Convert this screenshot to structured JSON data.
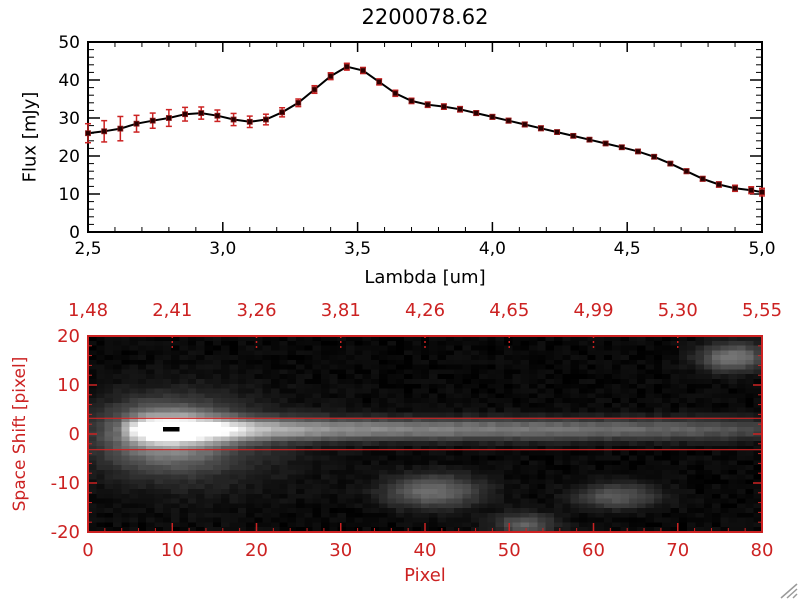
{
  "window": {
    "background": "#ffffff"
  },
  "colors": {
    "axis_black": "#000000",
    "accent_red": "#cc2222",
    "error_bar_red": "#cc2222",
    "marker_fill": "#2b0000",
    "marker_stroke": "#8b1a1a",
    "line_black": "#000000",
    "grip_gray": "#9a9a9a"
  },
  "icons": {
    "resize_grip": "diagonal-hatch-grip"
  },
  "chart_data": [
    {
      "type": "line",
      "title": "2200078.62",
      "xlabel": "Lambda [um]",
      "ylabel": "Flux [mJy]",
      "xlim": [
        2.5,
        5.0
      ],
      "ylim": [
        0,
        50
      ],
      "grid": false,
      "x_ticks": [
        {
          "value": 2.5,
          "label": "2,5"
        },
        {
          "value": 3.0,
          "label": "3,0"
        },
        {
          "value": 3.5,
          "label": "3,5"
        },
        {
          "value": 4.0,
          "label": "4,0"
        },
        {
          "value": 4.5,
          "label": "4,5"
        },
        {
          "value": 5.0,
          "label": "5,0"
        }
      ],
      "y_ticks": [
        {
          "value": 0,
          "label": "0"
        },
        {
          "value": 10,
          "label": "10"
        },
        {
          "value": 20,
          "label": "20"
        },
        {
          "value": 30,
          "label": "30"
        },
        {
          "value": 40,
          "label": "40"
        },
        {
          "value": 50,
          "label": "50"
        }
      ],
      "x_minor_step": 0.1,
      "y_minor_step": 2,
      "series": [
        {
          "name": "spectrum",
          "marker": "square",
          "x": [
            2.5,
            2.56,
            2.62,
            2.68,
            2.74,
            2.8,
            2.86,
            2.92,
            2.98,
            3.04,
            3.1,
            3.16,
            3.22,
            3.28,
            3.34,
            3.4,
            3.46,
            3.52,
            3.58,
            3.64,
            3.7,
            3.76,
            3.82,
            3.88,
            3.94,
            4.0,
            4.06,
            4.12,
            4.18,
            4.24,
            4.3,
            4.36,
            4.42,
            4.48,
            4.54,
            4.6,
            4.66,
            4.72,
            4.78,
            4.84,
            4.9,
            4.96,
            5.0
          ],
          "y": [
            26.0,
            26.5,
            27.2,
            28.5,
            29.3,
            30.0,
            31.0,
            31.3,
            30.6,
            29.6,
            29.0,
            29.6,
            31.5,
            34.0,
            37.5,
            41.0,
            43.5,
            42.5,
            39.5,
            36.5,
            34.5,
            33.5,
            33.0,
            32.3,
            31.3,
            30.3,
            29.3,
            28.3,
            27.3,
            26.3,
            25.3,
            24.3,
            23.3,
            22.3,
            21.2,
            19.8,
            18.0,
            16.0,
            14.0,
            12.5,
            11.5,
            11.0,
            10.5
          ],
          "yerr": [
            2.5,
            2.8,
            3.2,
            2.2,
            2.0,
            2.2,
            1.8,
            1.6,
            1.5,
            1.6,
            1.5,
            1.4,
            1.2,
            1.0,
            1.0,
            0.9,
            0.9,
            0.8,
            0.8,
            0.8,
            0.7,
            0.7,
            0.7,
            0.7,
            0.6,
            0.6,
            0.6,
            0.6,
            0.6,
            0.5,
            0.5,
            0.5,
            0.5,
            0.5,
            0.5,
            0.5,
            0.5,
            0.6,
            0.6,
            0.7,
            0.8,
            0.9,
            1.0
          ]
        }
      ]
    },
    {
      "type": "heatmap",
      "title": "",
      "xlabel": "Pixel",
      "ylabel": "Space Shift [pixel]",
      "xlim": [
        0,
        80
      ],
      "ylim": [
        -20,
        20
      ],
      "x_ticks": [
        {
          "value": 0,
          "label": "0"
        },
        {
          "value": 10,
          "label": "10"
        },
        {
          "value": 20,
          "label": "20"
        },
        {
          "value": 30,
          "label": "30"
        },
        {
          "value": 40,
          "label": "40"
        },
        {
          "value": 50,
          "label": "50"
        },
        {
          "value": 60,
          "label": "60"
        },
        {
          "value": 70,
          "label": "70"
        },
        {
          "value": 80,
          "label": "80"
        }
      ],
      "y_ticks": [
        {
          "value": 20,
          "label": "20"
        },
        {
          "value": 10,
          "label": "10"
        },
        {
          "value": 0,
          "label": "0"
        },
        {
          "value": -10,
          "label": "-10"
        },
        {
          "value": -20,
          "label": "-20"
        }
      ],
      "top_axis_labels": [
        {
          "x": 0,
          "label": "1,48"
        },
        {
          "x": 10,
          "label": "2,41"
        },
        {
          "x": 20,
          "label": "3,26"
        },
        {
          "x": 30,
          "label": "3,81"
        },
        {
          "x": 40,
          "label": "4,26"
        },
        {
          "x": 50,
          "label": "4,65"
        },
        {
          "x": 60,
          "label": "4,99"
        },
        {
          "x": 70,
          "label": "5,30"
        },
        {
          "x": 80,
          "label": "5,55"
        }
      ],
      "aperture_lines_y": [
        3.2,
        -3.2
      ],
      "image_model": {
        "background": 0.02,
        "gamma": 0.9,
        "noise_amplitude": 0.05,
        "streak": {
          "y_center": 1.0,
          "sigma_y": 1.6,
          "amplitude_profile": [
            [
              0,
              0
            ],
            [
              3,
              0.05
            ],
            [
              5,
              0.5
            ],
            [
              7,
              0.95
            ],
            [
              10,
              1.0
            ],
            [
              14,
              0.85
            ],
            [
              20,
              0.6
            ],
            [
              30,
              0.5
            ],
            [
              40,
              0.45
            ],
            [
              50,
              0.42
            ],
            [
              60,
              0.38
            ],
            [
              70,
              0.33
            ],
            [
              76,
              0.28
            ],
            [
              80,
              0.22
            ]
          ]
        },
        "halos": [
          {
            "x": 9,
            "y": 0,
            "sx": 5,
            "sy": 4.5,
            "a": 0.5
          },
          {
            "x": 12,
            "y": -2,
            "sx": 9,
            "sy": 7.0,
            "a": 0.15
          }
        ],
        "blobs": [
          {
            "x": 41,
            "y": -12,
            "sx": 4.0,
            "sy": 2.4,
            "a": 0.38
          },
          {
            "x": 63,
            "y": -13,
            "sx": 3.5,
            "sy": 1.8,
            "a": 0.3
          },
          {
            "x": 77,
            "y": 16,
            "sx": 2.8,
            "sy": 2.0,
            "a": 0.42
          },
          {
            "x": 52,
            "y": -19,
            "sx": 2.5,
            "sy": 1.6,
            "a": 0.32
          }
        ],
        "centroid_mark": {
          "x": 9,
          "y": 1
        }
      }
    }
  ]
}
